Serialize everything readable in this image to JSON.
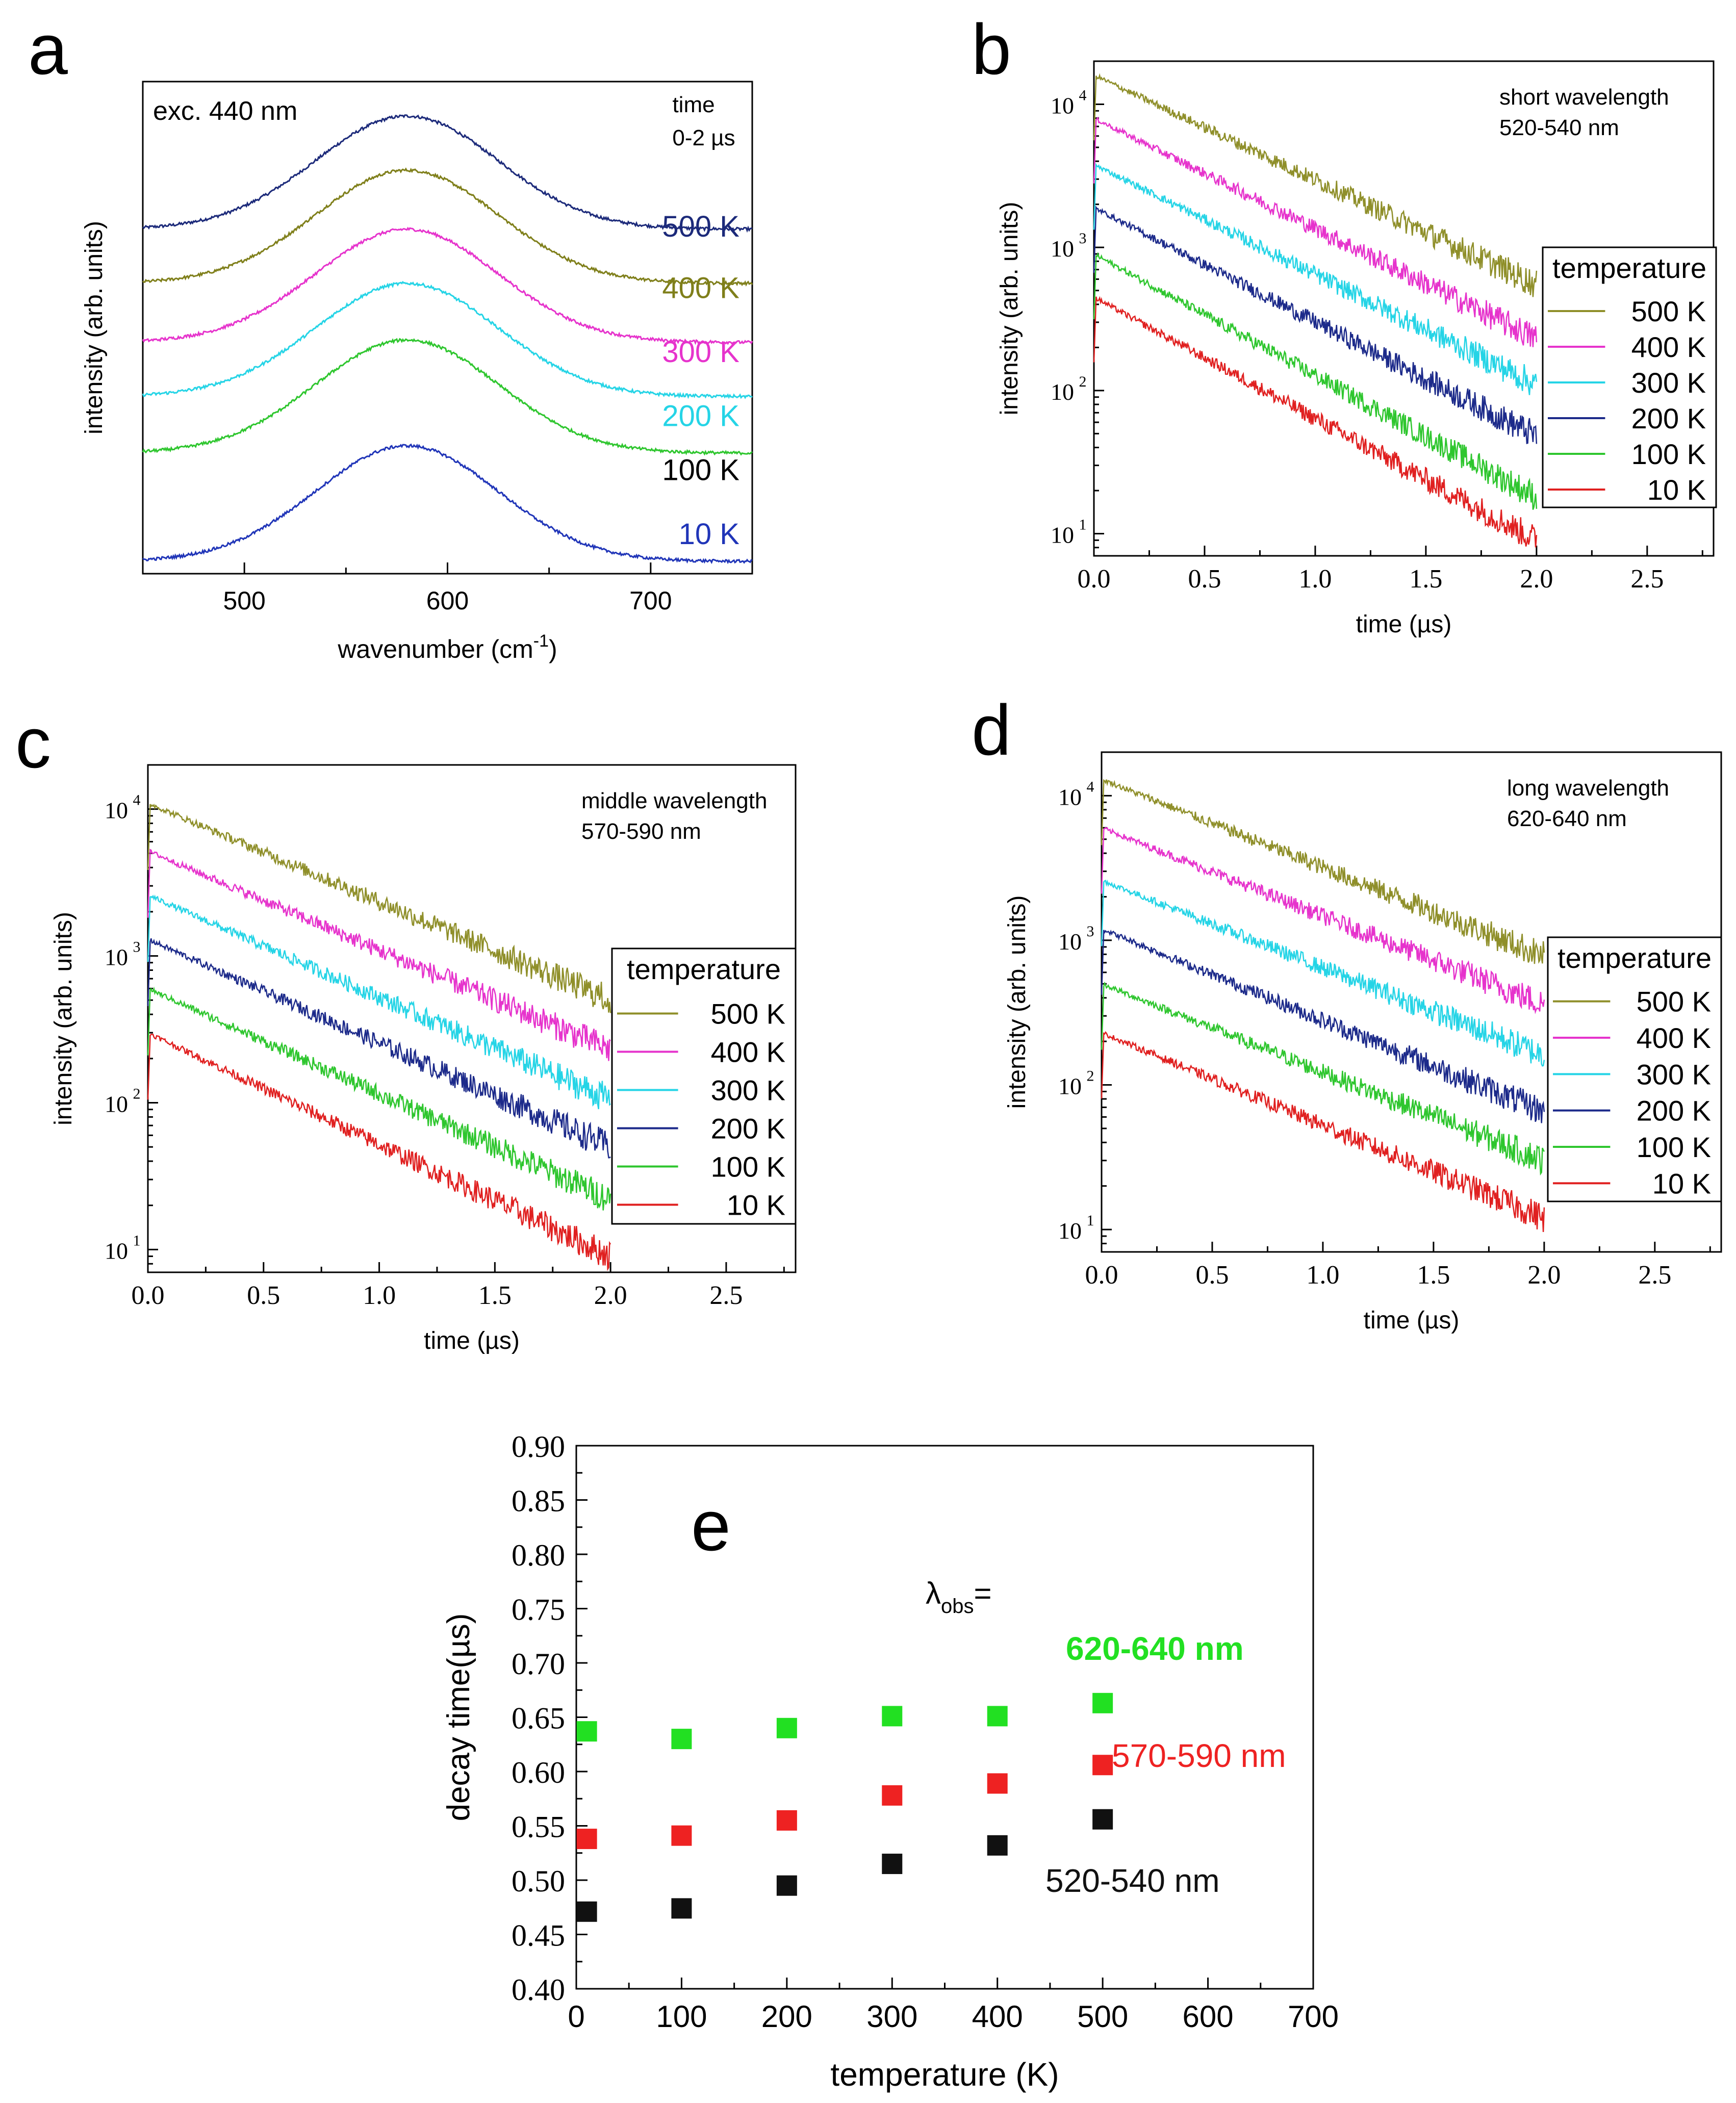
{
  "chart_data": [
    {
      "panel": "a",
      "type": "line",
      "title": "",
      "xlabel": "wavenumber (cm-1)",
      "xlabel_main": "wavenumber (cm",
      "xlabel_sup": "-1",
      "xlabel_close": ")",
      "ylabel": "intensity (arb. units)",
      "xlim": [
        450,
        750
      ],
      "xticks": [
        500,
        600,
        700
      ],
      "annotation_left": "exc. 440 nm",
      "annotation_right": [
        "time",
        "0-2 µs"
      ],
      "peak_center": 580,
      "peak_width_sigma": 45,
      "series": [
        {
          "name": "500 K",
          "color": "#1c2a7a",
          "label_color": "#1c2a7a",
          "baseline": 0.7,
          "amplitude": 0.23
        },
        {
          "name": "400 K",
          "color": "#7f7f1a",
          "label_color": "#7f7f1a",
          "baseline": 0.59,
          "amplitude": 0.23
        },
        {
          "name": "300 K",
          "color": "#e633cc",
          "label_color": "#e633cc",
          "baseline": 0.47,
          "amplitude": 0.23
        },
        {
          "name": "200 K",
          "color": "#25d4e6",
          "label_color": "#25d4e6",
          "baseline": 0.36,
          "amplitude": 0.23
        },
        {
          "name": "100 K",
          "color": "#2ec62e",
          "label_color": "#000000",
          "baseline": 0.245,
          "amplitude": 0.23
        },
        {
          "name": "10 K",
          "color": "#2035b8",
          "label_color": "#2035b8",
          "baseline": 0.025,
          "amplitude": 0.235
        }
      ]
    },
    {
      "panel": "b",
      "type": "line",
      "yscale": "log",
      "xlabel": "time (µs)",
      "ylabel": "intensity (arb. units)",
      "xlim": [
        0,
        2.8
      ],
      "ylim": [
        7,
        20000
      ],
      "xticks": [
        "0.0",
        "0.5",
        "1.0",
        "1.5",
        "2.0",
        "2.5"
      ],
      "yticks": [
        {
          "base": "10",
          "exp": "1"
        },
        {
          "base": "10",
          "exp": "2"
        },
        {
          "base": "10",
          "exp": "3"
        },
        {
          "base": "10",
          "exp": "4"
        }
      ],
      "annotation": [
        "short wavelength",
        "520-540 nm"
      ],
      "legend_title": "temperature",
      "series": [
        {
          "name": "500 K",
          "color": "#8f8f2a",
          "start": 16000,
          "end": 550
        },
        {
          "name": "400 K",
          "color": "#e633cc",
          "start": 8000,
          "end": 230
        },
        {
          "name": "300 K",
          "color": "#25d4e6",
          "start": 3800,
          "end": 110
        },
        {
          "name": "200 K",
          "color": "#1c2a8a",
          "start": 1900,
          "end": 48
        },
        {
          "name": "100 K",
          "color": "#2ec62e",
          "start": 900,
          "end": 18
        },
        {
          "name": "10 K",
          "color": "#e02020",
          "start": 450,
          "end": 9
        }
      ]
    },
    {
      "panel": "c",
      "type": "line",
      "yscale": "log",
      "xlabel": "time (µs)",
      "ylabel": "intensity (arb. units)",
      "xlim": [
        0,
        2.8
      ],
      "ylim": [
        7,
        20000
      ],
      "xticks": [
        "0.0",
        "0.5",
        "1.0",
        "1.5",
        "2.0",
        "2.5"
      ],
      "yticks": [
        {
          "base": "10",
          "exp": "1"
        },
        {
          "base": "10",
          "exp": "2"
        },
        {
          "base": "10",
          "exp": "3"
        },
        {
          "base": "10",
          "exp": "4"
        }
      ],
      "annotation": [
        "middle wavelength",
        "570-590 nm"
      ],
      "legend_title": "temperature",
      "series": [
        {
          "name": "500 K",
          "color": "#8f8f2a",
          "start": 11000,
          "end": 500
        },
        {
          "name": "400 K",
          "color": "#e633cc",
          "start": 5200,
          "end": 230
        },
        {
          "name": "300 K",
          "color": "#25d4e6",
          "start": 2600,
          "end": 105
        },
        {
          "name": "200 K",
          "color": "#1c2a8a",
          "start": 1300,
          "end": 50
        },
        {
          "name": "100 K",
          "color": "#2ec62e",
          "start": 600,
          "end": 22
        },
        {
          "name": "10 K",
          "color": "#e02020",
          "start": 300,
          "end": 9
        }
      ]
    },
    {
      "panel": "d",
      "type": "line",
      "yscale": "log",
      "xlabel": "time (µs)",
      "ylabel": "intensity (arb. units)",
      "xlim": [
        0,
        2.8
      ],
      "ylim": [
        7,
        20000
      ],
      "xticks": [
        "0.0",
        "0.5",
        "1.0",
        "1.5",
        "2.0",
        "2.5"
      ],
      "yticks": [
        {
          "base": "10",
          "exp": "1"
        },
        {
          "base": "10",
          "exp": "2"
        },
        {
          "base": "10",
          "exp": "3"
        },
        {
          "base": "10",
          "exp": "4"
        }
      ],
      "annotation": [
        "long wavelength",
        "620-640 nm"
      ],
      "legend_title": "temperature",
      "series": [
        {
          "name": "500 K",
          "color": "#8f8f2a",
          "start": 13000,
          "end": 780
        },
        {
          "name": "400 K",
          "color": "#e633cc",
          "start": 6000,
          "end": 360
        },
        {
          "name": "300 K",
          "color": "#25d4e6",
          "start": 2600,
          "end": 160
        },
        {
          "name": "200 K",
          "color": "#1c2a8a",
          "start": 1200,
          "end": 65
        },
        {
          "name": "100 K",
          "color": "#2ec62e",
          "start": 500,
          "end": 30
        },
        {
          "name": "10 K",
          "color": "#e02020",
          "start": 230,
          "end": 12
        }
      ]
    },
    {
      "panel": "e",
      "type": "scatter",
      "xlabel": "temperature (K)",
      "ylabel": "decay time(µs)",
      "xlim": [
        0,
        700
      ],
      "ylim": [
        0.4,
        0.9
      ],
      "xticks": [
        0,
        100,
        200,
        300,
        400,
        500,
        600,
        700
      ],
      "yticks": [
        "0.40",
        "0.45",
        "0.50",
        "0.55",
        "0.60",
        "0.65",
        "0.70",
        "0.75",
        "0.80",
        "0.85",
        "0.90"
      ],
      "lambda_label": "λ",
      "lambda_sub": "obs",
      "lambda_eq": "=",
      "series": [
        {
          "name": "620-640 nm",
          "color": "#22e022",
          "x": [
            10,
            100,
            200,
            300,
            400,
            500
          ],
          "y": [
            0.637,
            0.63,
            0.64,
            0.651,
            0.651,
            0.663
          ]
        },
        {
          "name": "570-590 nm",
          "color": "#ee2222",
          "x": [
            10,
            100,
            200,
            300,
            400,
            500
          ],
          "y": [
            0.538,
            0.541,
            0.555,
            0.578,
            0.589,
            0.606
          ]
        },
        {
          "name": "520-540 nm",
          "color": "#111111",
          "x": [
            10,
            100,
            200,
            300,
            400,
            500
          ],
          "y": [
            0.471,
            0.474,
            0.495,
            0.515,
            0.532,
            0.556
          ]
        }
      ]
    }
  ],
  "panel_letters": {
    "a": "a",
    "b": "b",
    "c": "c",
    "d": "d",
    "e": "e"
  }
}
